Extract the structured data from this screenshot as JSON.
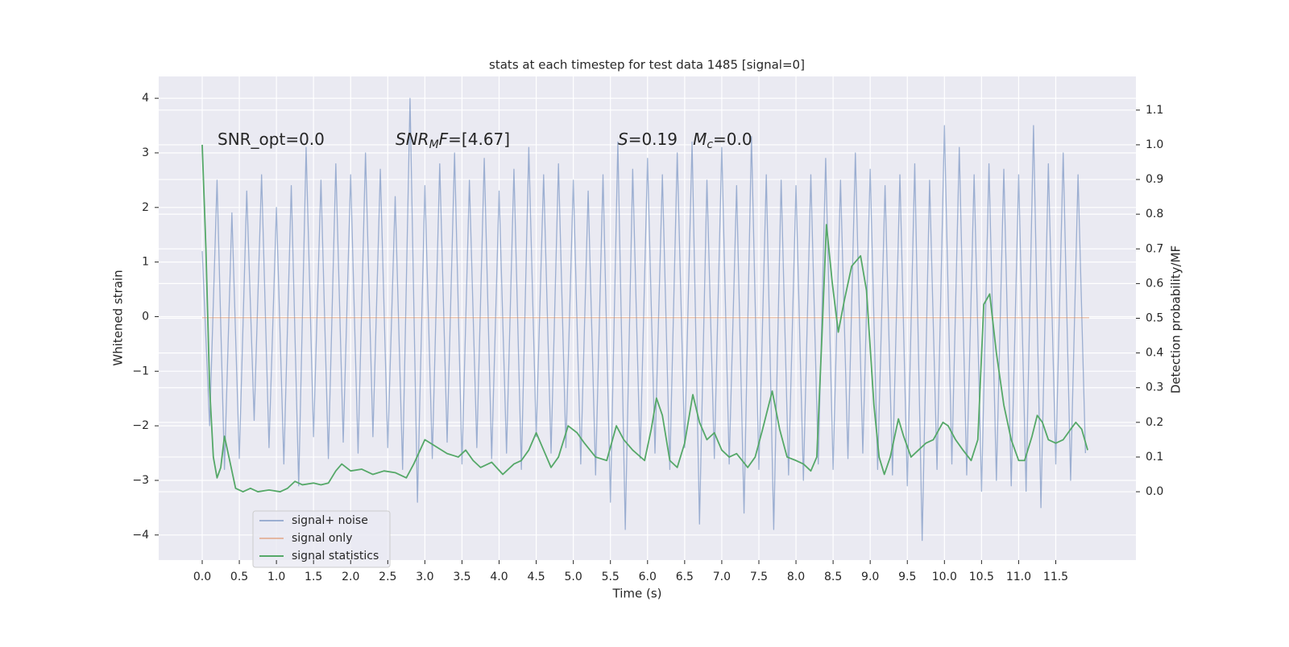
{
  "chart_data": {
    "type": "line",
    "title": "stats at each timestep for test data 1485 [signal=0]",
    "x_label": "Time (s)",
    "y_label": "Whitened strain",
    "y2_label": "Detection probability/MF",
    "grid": true,
    "legend": "lower left",
    "xlim": [
      -0.586,
      12.58
    ],
    "ylim": [
      -4.46,
      4.4
    ],
    "y2lim": [
      -0.197,
      1.197
    ],
    "xticks": [
      {
        "value": 0,
        "label": "0.0"
      },
      {
        "value": 0.5,
        "label": "0.5"
      },
      {
        "value": 1,
        "label": "1.0"
      },
      {
        "value": 1.5,
        "label": "1.5"
      },
      {
        "value": 2,
        "label": "2.0"
      },
      {
        "value": 2.5,
        "label": "2.5"
      },
      {
        "value": 3,
        "label": "3.0"
      },
      {
        "value": 3.5,
        "label": "3.5"
      },
      {
        "value": 4,
        "label": "4.0"
      },
      {
        "value": 4.5,
        "label": "4.5"
      },
      {
        "value": 5,
        "label": "5.0"
      },
      {
        "value": 5.5,
        "label": "5.5"
      },
      {
        "value": 6,
        "label": "6.0"
      },
      {
        "value": 6.5,
        "label": "6.5"
      },
      {
        "value": 7,
        "label": "7.0"
      },
      {
        "value": 7.5,
        "label": "7.5"
      },
      {
        "value": 8,
        "label": "8.0"
      },
      {
        "value": 8.5,
        "label": "8.5"
      },
      {
        "value": 9,
        "label": "9.0"
      },
      {
        "value": 9.5,
        "label": "9.5"
      },
      {
        "value": 10,
        "label": "10.0"
      },
      {
        "value": 10.5,
        "label": "10.5"
      },
      {
        "value": 11,
        "label": "11.0"
      },
      {
        "value": 11.5,
        "label": "11.5"
      }
    ],
    "yticks": [
      {
        "value": -4,
        "label": "−4"
      },
      {
        "value": -3,
        "label": "−3"
      },
      {
        "value": -2,
        "label": "−2"
      },
      {
        "value": -1,
        "label": "−1"
      },
      0,
      1,
      2,
      3,
      4
    ],
    "y2ticks": [
      {
        "value": 0,
        "label": "0.0"
      },
      {
        "value": 0.1,
        "label": "0.1"
      },
      {
        "value": 0.2,
        "label": "0.2"
      },
      {
        "value": 0.3,
        "label": "0.3"
      },
      {
        "value": 0.4,
        "label": "0.4"
      },
      {
        "value": 0.5,
        "label": "0.5"
      },
      {
        "value": 0.6,
        "label": "0.6"
      },
      {
        "value": 0.7,
        "label": "0.7"
      },
      {
        "value": 0.8,
        "label": "0.8"
      },
      {
        "value": 0.9,
        "label": "0.9"
      },
      {
        "value": 1,
        "label": "1.0"
      },
      {
        "value": 1.1,
        "label": "1.1"
      }
    ],
    "annotations": [
      [
        {
          "text": "SNR_opt=0.0"
        }
      ],
      [
        {
          "text": "SNR",
          "italic": true
        },
        {
          "text": "M",
          "italic": true,
          "sub": true
        },
        {
          "text": "F",
          "italic": true
        },
        {
          "text": "=[4.67]"
        }
      ],
      [
        {
          "text": "S",
          "italic": true
        },
        {
          "text": "=0.19   "
        },
        {
          "text": "M",
          "italic": true
        },
        {
          "text": "c",
          "italic": true,
          "sub": true
        },
        {
          "text": "=0.0"
        }
      ]
    ],
    "series": [
      {
        "name": "signal+ noise",
        "color": "#4c72b0",
        "opacity": 0.5,
        "x": [
          0,
          0.1,
          0.2,
          0.3,
          0.4,
          0.5,
          0.6,
          0.7,
          0.8,
          0.9,
          1,
          1.1,
          1.2,
          1.3,
          1.4,
          1.5,
          1.6,
          1.7,
          1.8,
          1.9,
          2,
          2.1,
          2.2,
          2.3,
          2.4,
          2.5,
          2.6,
          2.7,
          2.8,
          2.9,
          3,
          3.1,
          3.2,
          3.3,
          3.4,
          3.5,
          3.6,
          3.7,
          3.8,
          3.9,
          4,
          4.1,
          4.2,
          4.3,
          4.4,
          4.5,
          4.6,
          4.7,
          4.8,
          4.9,
          5,
          5.1,
          5.2,
          5.3,
          5.4,
          5.5,
          5.6,
          5.7,
          5.8,
          5.9,
          6,
          6.1,
          6.2,
          6.3,
          6.4,
          6.5,
          6.6,
          6.7,
          6.8,
          6.9,
          7,
          7.1,
          7.2,
          7.3,
          7.4,
          7.5,
          7.6,
          7.7,
          7.8,
          7.9,
          8,
          8.1,
          8.2,
          8.3,
          8.4,
          8.5,
          8.6,
          8.7,
          8.8,
          8.9,
          9,
          9.1,
          9.2,
          9.3,
          9.4,
          9.5,
          9.6,
          9.7,
          9.8,
          9.9,
          10,
          10.1,
          10.2,
          10.3,
          10.4,
          10.5,
          10.6,
          10.7,
          10.8,
          10.9,
          11,
          11.1,
          11.2,
          11.3,
          11.4,
          11.5,
          11.6,
          11.7,
          11.8,
          11.9
        ],
        "values": [
          1.2,
          -2.0,
          2.5,
          -2.8,
          1.9,
          -2.6,
          2.3,
          -1.9,
          2.6,
          -2.4,
          2.0,
          -2.7,
          2.4,
          -3.1,
          3.1,
          -2.2,
          2.5,
          -2.6,
          2.8,
          -2.3,
          2.6,
          -2.5,
          3.0,
          -2.2,
          2.7,
          -2.4,
          2.2,
          -2.8,
          4.0,
          -3.4,
          2.4,
          -2.6,
          2.8,
          -2.3,
          3.0,
          -2.7,
          2.5,
          -2.4,
          2.9,
          -2.6,
          2.3,
          -2.5,
          2.7,
          -2.8,
          3.1,
          -2.2,
          2.6,
          -2.5,
          2.8,
          -2.4,
          2.5,
          -2.7,
          2.3,
          -2.9,
          2.6,
          -3.4,
          3.2,
          -3.9,
          2.7,
          -2.6,
          2.9,
          -2.5,
          2.6,
          -2.8,
          3.0,
          -2.4,
          3.2,
          -3.8,
          2.5,
          -2.6,
          3.1,
          -2.7,
          2.4,
          -3.6,
          3.3,
          -2.8,
          2.6,
          -3.9,
          2.5,
          -2.9,
          2.4,
          -3.0,
          2.6,
          -2.7,
          2.9,
          -2.8,
          2.5,
          -2.6,
          3.0,
          -2.5,
          2.7,
          -2.8,
          2.4,
          -2.9,
          2.6,
          -3.1,
          2.8,
          -4.1,
          2.5,
          -2.8,
          3.5,
          -2.7,
          3.1,
          -2.9,
          2.6,
          -3.2,
          2.8,
          -3.0,
          2.7,
          -3.1,
          2.6,
          -3.2,
          3.5,
          -3.5,
          2.8,
          -2.7,
          3.0,
          -3.0,
          2.6,
          -2.5
        ]
      },
      {
        "name": "signal only",
        "color": "#dd8452",
        "opacity": 0.5,
        "x": [
          0,
          11.95
        ],
        "values": [
          -0.02,
          -0.02
        ]
      },
      {
        "name": "signal statistics",
        "color": "#55a868",
        "opacity": 1,
        "axis": "y2",
        "x": [
          0,
          0.05,
          0.1,
          0.15,
          0.2,
          0.25,
          0.3,
          0.38,
          0.45,
          0.55,
          0.65,
          0.75,
          0.9,
          1.05,
          1.15,
          1.25,
          1.35,
          1.5,
          1.6,
          1.7,
          1.8,
          1.88,
          2,
          2.15,
          2.3,
          2.45,
          2.6,
          2.75,
          2.85,
          3,
          3.15,
          3.3,
          3.45,
          3.55,
          3.65,
          3.75,
          3.9,
          4.05,
          4.2,
          4.3,
          4.4,
          4.5,
          4.6,
          4.7,
          4.8,
          4.93,
          5.05,
          5.15,
          5.3,
          5.45,
          5.58,
          5.68,
          5.8,
          5.96,
          6.05,
          6.12,
          6.2,
          6.3,
          6.4,
          6.5,
          6.61,
          6.7,
          6.8,
          6.9,
          7,
          7.1,
          7.2,
          7.35,
          7.45,
          7.55,
          7.68,
          7.78,
          7.88,
          8,
          8.1,
          8.2,
          8.28,
          8.35,
          8.41,
          8.49,
          8.57,
          8.65,
          8.75,
          8.87,
          8.95,
          9.05,
          9.12,
          9.19,
          9.27,
          9.38,
          9.45,
          9.55,
          9.65,
          9.75,
          9.85,
          9.98,
          10.05,
          10.15,
          10.25,
          10.36,
          10.45,
          10.53,
          10.61,
          10.7,
          10.8,
          10.9,
          11,
          11.08,
          11.18,
          11.25,
          11.32,
          11.4,
          11.5,
          11.6,
          11.7,
          11.77,
          11.85,
          11.93
        ],
        "values": [
          1.0,
          0.7,
          0.3,
          0.1,
          0.04,
          0.07,
          0.16,
          0.08,
          0.01,
          0.0,
          0.01,
          0.0,
          0.005,
          0.0,
          0.01,
          0.03,
          0.02,
          0.025,
          0.02,
          0.025,
          0.06,
          0.08,
          0.06,
          0.065,
          0.05,
          0.06,
          0.055,
          0.04,
          0.08,
          0.15,
          0.13,
          0.11,
          0.1,
          0.12,
          0.09,
          0.07,
          0.085,
          0.05,
          0.08,
          0.09,
          0.12,
          0.17,
          0.12,
          0.07,
          0.1,
          0.19,
          0.17,
          0.14,
          0.1,
          0.09,
          0.19,
          0.15,
          0.12,
          0.09,
          0.18,
          0.27,
          0.22,
          0.09,
          0.07,
          0.14,
          0.28,
          0.2,
          0.15,
          0.17,
          0.12,
          0.1,
          0.11,
          0.07,
          0.1,
          0.18,
          0.29,
          0.18,
          0.1,
          0.09,
          0.08,
          0.06,
          0.1,
          0.45,
          0.77,
          0.6,
          0.46,
          0.55,
          0.65,
          0.68,
          0.58,
          0.25,
          0.1,
          0.05,
          0.1,
          0.21,
          0.16,
          0.1,
          0.12,
          0.14,
          0.15,
          0.2,
          0.19,
          0.15,
          0.12,
          0.09,
          0.15,
          0.54,
          0.57,
          0.4,
          0.25,
          0.15,
          0.09,
          0.09,
          0.16,
          0.22,
          0.2,
          0.15,
          0.14,
          0.15,
          0.18,
          0.2,
          0.18,
          0.12
        ]
      }
    ]
  }
}
